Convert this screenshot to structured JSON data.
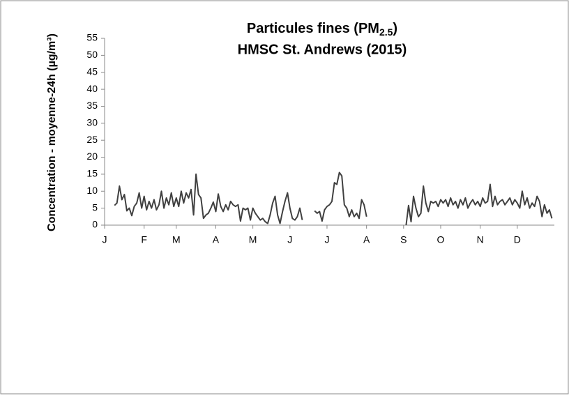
{
  "chart_data": {
    "type": "line",
    "title": {
      "main": "Particules fines (PM",
      "subscript": "2.5",
      "end": ")"
    },
    "subtitle": "HMSC St. Andrews (2015)",
    "y_label": "Concentration - moyenne-24h (µg/m³)",
    "categories": [
      "J",
      null,
      null,
      null,
      null,
      null,
      null,
      null,
      null,
      null,
      null,
      null,
      null,
      null,
      null,
      null,
      "F",
      null,
      null,
      null,
      null,
      null,
      null,
      null,
      null,
      null,
      null,
      null,
      null,
      "M",
      null,
      null,
      null,
      null,
      null,
      null,
      null,
      null,
      null,
      null,
      null,
      null,
      null,
      null,
      null,
      "A",
      null,
      null,
      null,
      null,
      null,
      null,
      null,
      null,
      null,
      null,
      null,
      null,
      null,
      null,
      "M",
      null,
      null,
      null,
      null,
      null,
      null,
      null,
      null,
      null,
      null,
      null,
      null,
      null,
      null,
      "J",
      null,
      null,
      null,
      null,
      null,
      null,
      null,
      null,
      null,
      null,
      null,
      null,
      null,
      null,
      "J",
      null,
      null,
      null,
      null,
      null,
      null,
      null,
      null,
      null,
      null,
      null,
      null,
      null,
      null,
      null,
      "A",
      null,
      null,
      null,
      null,
      null,
      null,
      null,
      null,
      null,
      null,
      null,
      null,
      null,
      null,
      "S",
      null,
      null,
      null,
      null,
      null,
      null,
      null,
      null,
      null,
      null,
      null,
      null,
      null,
      null,
      "O",
      null,
      null,
      null,
      null,
      null,
      null,
      null,
      null,
      null,
      null,
      null,
      null,
      null,
      null,
      null,
      "N",
      null,
      null,
      null,
      null,
      null,
      null,
      null,
      null,
      null,
      null,
      null,
      null,
      null,
      null,
      "D",
      null,
      null,
      null,
      null,
      null,
      null,
      null,
      null,
      null,
      null,
      null,
      null,
      null,
      null
    ],
    "series": [
      {
        "name": "PM2.5",
        "color": "#404040",
        "values": [
          null,
          null,
          null,
          null,
          5.8,
          6.5,
          11.5,
          7.5,
          9,
          4.2,
          5,
          2.8,
          5.5,
          6.5,
          9.5,
          5,
          8.5,
          4.5,
          7,
          5,
          7.5,
          4.5,
          6,
          10,
          5,
          8,
          6,
          9.5,
          5.5,
          8,
          5.5,
          10,
          6.5,
          9.5,
          8,
          10.5,
          3,
          15,
          9,
          8,
          2,
          3,
          3.5,
          5,
          6.8,
          4,
          9.2,
          5.5,
          4,
          6,
          4.5,
          7,
          6,
          5.5,
          6,
          1.2,
          5,
          4.5,
          5,
          1.5,
          5,
          3.5,
          2.5,
          1.5,
          2,
          1,
          0.5,
          3,
          6.5,
          8.5,
          3,
          0.5,
          4,
          7,
          9.5,
          5,
          2,
          1.5,
          2.5,
          5,
          1.5,
          null,
          null,
          null,
          null,
          4.2,
          3.5,
          4,
          1.2,
          4.5,
          5.5,
          6,
          7,
          12.5,
          12,
          15.5,
          14.5,
          6,
          5,
          2.5,
          4.5,
          2.5,
          3.5,
          2,
          7.5,
          6,
          2.5,
          null,
          null,
          null,
          null,
          null,
          null,
          null,
          null,
          null,
          null,
          null,
          null,
          null,
          null,
          null,
          0,
          5.8,
          1,
          8.5,
          5,
          2.5,
          3.5,
          11.5,
          6.5,
          4,
          7,
          6.5,
          7,
          5.5,
          7.5,
          6.5,
          7.5,
          5.5,
          8,
          6,
          7,
          5,
          7.5,
          6,
          8,
          5,
          6.5,
          7.5,
          6,
          7,
          5.5,
          8,
          6.5,
          7,
          12,
          5.5,
          8.5,
          6,
          7,
          7.5,
          6,
          7,
          8,
          6,
          7.5,
          6.5,
          5,
          10,
          6,
          8,
          5,
          6.5,
          5.5,
          8.5,
          7,
          2.5,
          6,
          3.5,
          4.5,
          2
        ]
      }
    ],
    "ylim": [
      0,
      55
    ],
    "yticks": [
      0,
      5,
      10,
      15,
      20,
      25,
      30,
      35,
      40,
      45,
      50,
      55
    ],
    "grid": false
  }
}
